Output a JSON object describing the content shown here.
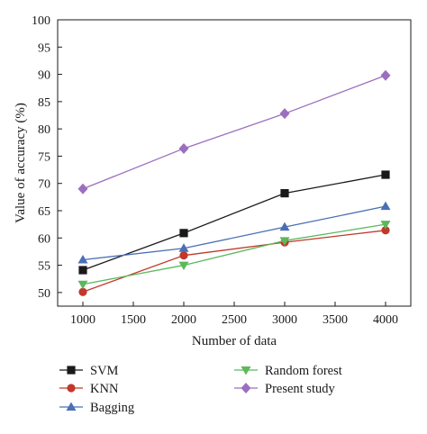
{
  "chart_data": {
    "type": "line",
    "xlabel": "Number of data",
    "ylabel": "Value of accuracy (%)",
    "x": [
      1000,
      2000,
      3000,
      4000
    ],
    "xlim": [
      750,
      4250
    ],
    "ylim": [
      47.5,
      100
    ],
    "xticks": [
      1000,
      1500,
      2000,
      2500,
      3000,
      3500,
      4000
    ],
    "yticks": [
      50,
      55,
      60,
      65,
      70,
      75,
      80,
      85,
      90,
      95,
      100
    ],
    "grid": false,
    "legend_position": "bottom",
    "series": [
      {
        "name": "SVM",
        "values": [
          54.1,
          60.9,
          68.2,
          71.6
        ],
        "color": "#1a1a1a",
        "marker": "square"
      },
      {
        "name": "KNN",
        "values": [
          50.1,
          56.8,
          59.2,
          61.4
        ],
        "color": "#c0392b",
        "marker": "circle"
      },
      {
        "name": "Bagging",
        "values": [
          56.0,
          58.1,
          62.0,
          65.8
        ],
        "color": "#4a6fb5",
        "marker": "triangle-up"
      },
      {
        "name": "Random forest",
        "values": [
          51.5,
          55.0,
          59.5,
          62.5
        ],
        "color": "#5cb85c",
        "marker": "triangle-down"
      },
      {
        "name": "Present study",
        "values": [
          69.0,
          76.4,
          82.8,
          89.8
        ],
        "color": "#9b6fc0",
        "marker": "diamond"
      }
    ]
  }
}
